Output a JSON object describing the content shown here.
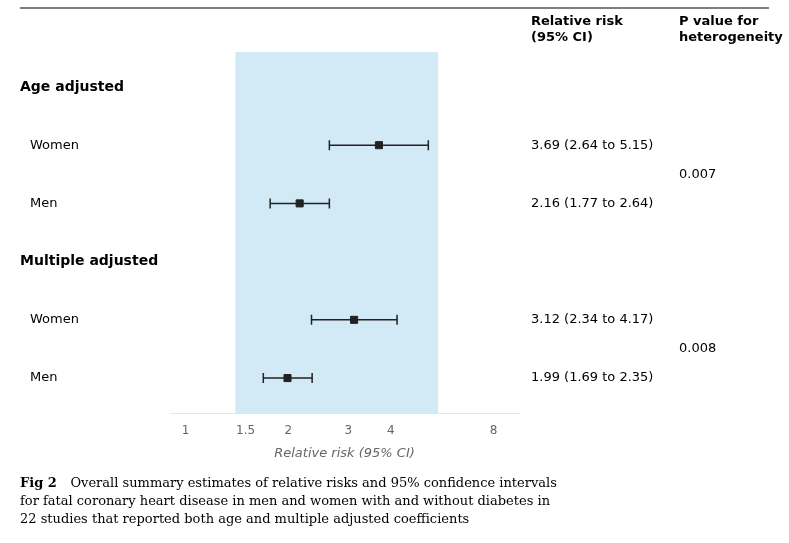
{
  "chart_data": {
    "type": "forest",
    "xlabel": "Relative risk (95% CI)",
    "log": "x",
    "xlim": [
      0.9,
      9.5
    ],
    "xticks": [
      1,
      1.5,
      2,
      3,
      4,
      8
    ],
    "grid": false,
    "tick_labels": "x",
    "color": "#222222",
    "marker": "square",
    "shade": {
      "x0": 1.4,
      "x1": 5.5,
      "color": "#b8dff0"
    },
    "column_headers": [
      [
        "Relative risk",
        "(95% CI)"
      ],
      [
        "P value for",
        "heterogeneity"
      ]
    ],
    "groups": [
      {
        "label": "Age adjusted",
        "categories": [
          "Women",
          "Men"
        ],
        "values": [
          3.69,
          2.16
        ],
        "ci_low": [
          2.64,
          1.77
        ],
        "ci_high": [
          5.15,
          2.64
        ],
        "value_labels": [
          "3.69 (2.64 to 5.15)",
          "2.16 (1.77 to 2.64)"
        ],
        "p_value": "0.007"
      },
      {
        "label": "Multiple adjusted",
        "categories": [
          "Women",
          "Men"
        ],
        "values": [
          3.12,
          1.99
        ],
        "ci_low": [
          2.34,
          1.69
        ],
        "ci_high": [
          4.17,
          2.35
        ],
        "value_labels": [
          "3.12 (2.34 to 4.17)",
          "1.99 (1.69 to 2.35)"
        ],
        "p_value": "0.008"
      }
    ],
    "caption_label": "Fig 2",
    "caption": [
      "Overall summary estimates of relative risks and 95% confidence intervals",
      "for fatal coronary heart disease in men and women with and without diabetes in",
      "22 studies that reported both age and multiple adjusted coefficients"
    ]
  }
}
